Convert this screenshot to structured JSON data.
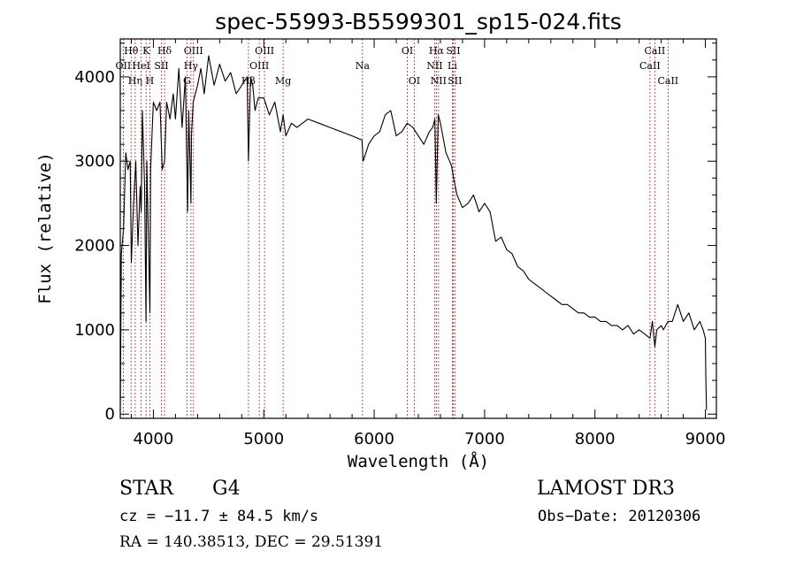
{
  "chart_data": {
    "type": "line",
    "title": "spec-55993-B5599301_sp15-024.fits",
    "xlabel": "Wavelength (Å)",
    "ylabel": "Flux (relative)",
    "xlim": [
      3700,
      9100
    ],
    "ylim": [
      -50,
      4450
    ],
    "x_ticks": [
      4000,
      5000,
      6000,
      7000,
      8000,
      9000
    ],
    "y_ticks": [
      0,
      1000,
      2000,
      3000,
      4000
    ],
    "grid": false,
    "series": [
      {
        "name": "spectrum",
        "x": [
          3700,
          3710,
          3730,
          3750,
          3770,
          3790,
          3800,
          3820,
          3840,
          3860,
          3880,
          3890,
          3900,
          3920,
          3933,
          3940,
          3950,
          3968,
          3975,
          3990,
          4000,
          4030,
          4060,
          4080,
          4101,
          4120,
          4150,
          4180,
          4200,
          4230,
          4260,
          4290,
          4310,
          4320,
          4340,
          4345,
          4360,
          4380,
          4400,
          4430,
          4460,
          4500,
          4550,
          4600,
          4650,
          4700,
          4750,
          4800,
          4850,
          4861,
          4880,
          4900,
          4920,
          4950,
          5000,
          5050,
          5100,
          5150,
          5175,
          5200,
          5250,
          5300,
          5400,
          5500,
          5600,
          5700,
          5800,
          5890,
          5900,
          5950,
          6000,
          6050,
          6100,
          6150,
          6200,
          6250,
          6300,
          6350,
          6400,
          6450,
          6500,
          6530,
          6550,
          6563,
          6580,
          6600,
          6650,
          6700,
          6720,
          6750,
          6800,
          6850,
          6900,
          6950,
          7000,
          7050,
          7100,
          7150,
          7200,
          7250,
          7300,
          7350,
          7400,
          7450,
          7500,
          7550,
          7600,
          7650,
          7700,
          7750,
          7800,
          7850,
          7900,
          7950,
          8000,
          8050,
          8100,
          8150,
          8200,
          8250,
          8300,
          8350,
          8400,
          8450,
          8498,
          8520,
          8542,
          8560,
          8600,
          8620,
          8662,
          8700,
          8750,
          8800,
          8850,
          8900,
          8950,
          8980,
          9000,
          9005,
          9010
        ],
        "values": [
          50,
          1900,
          2200,
          3100,
          2900,
          3000,
          1800,
          2500,
          3000,
          2000,
          2700,
          2400,
          3600,
          2700,
          1100,
          3000,
          2400,
          1200,
          2900,
          3400,
          3700,
          3600,
          3700,
          2900,
          3000,
          3700,
          3500,
          3800,
          3500,
          4100,
          3400,
          4000,
          2400,
          3600,
          2500,
          3300,
          3700,
          3800,
          3900,
          4100,
          3800,
          4250,
          3900,
          4150,
          3950,
          4050,
          3800,
          3900,
          4000,
          3000,
          4000,
          3900,
          3600,
          3750,
          3750,
          3550,
          3700,
          3350,
          3550,
          3300,
          3450,
          3400,
          3500,
          3450,
          3400,
          3350,
          3300,
          3250,
          3000,
          3200,
          3300,
          3350,
          3550,
          3600,
          3300,
          3350,
          3450,
          3400,
          3300,
          3200,
          3350,
          3400,
          3500,
          2500,
          3550,
          3450,
          3100,
          2950,
          2800,
          2600,
          2450,
          2500,
          2600,
          2400,
          2500,
          2400,
          2050,
          2100,
          1950,
          1900,
          1750,
          1700,
          1600,
          1550,
          1500,
          1450,
          1400,
          1350,
          1300,
          1300,
          1250,
          1200,
          1200,
          1150,
          1150,
          1100,
          1100,
          1050,
          1050,
          1000,
          1050,
          950,
          1000,
          950,
          900,
          1100,
          800,
          1000,
          1050,
          1000,
          1100,
          1100,
          1300,
          1100,
          1200,
          1000,
          1100,
          1000,
          900,
          400,
          50
        ]
      }
    ],
    "line_markers": [
      {
        "label": "Hθ",
        "wavelength": 3798,
        "row": 1
      },
      {
        "label": "OII",
        "wavelength": 3727,
        "row": 2
      },
      {
        "label": "Hη",
        "wavelength": 3835,
        "row": 3
      },
      {
        "label": "K",
        "wavelength": 3934,
        "row": 1
      },
      {
        "label": "HeI",
        "wavelength": 3889,
        "row": 2
      },
      {
        "label": "H",
        "wavelength": 3968,
        "row": 3
      },
      {
        "label": "Hδ",
        "wavelength": 4101,
        "row": 1
      },
      {
        "label": "SII",
        "wavelength": 4072,
        "row": 2
      },
      {
        "label": "OIII",
        "wavelength": 4363,
        "row": 1
      },
      {
        "label": "Hγ",
        "wavelength": 4340,
        "row": 2
      },
      {
        "label": "G",
        "wavelength": 4304,
        "row": 3
      },
      {
        "label": "OIII",
        "wavelength": 5007,
        "row": 1
      },
      {
        "label": "OIII",
        "wavelength": 4959,
        "row": 2
      },
      {
        "label": "Hβ",
        "wavelength": 4861,
        "row": 3
      },
      {
        "label": "Mg",
        "wavelength": 5175,
        "row": 3
      },
      {
        "label": "Na",
        "wavelength": 5894,
        "row": 2
      },
      {
        "label": "OI",
        "wavelength": 6300,
        "row": 1
      },
      {
        "label": "OI",
        "wavelength": 6363,
        "row": 3
      },
      {
        "label": "Hα",
        "wavelength": 6563,
        "row": 1
      },
      {
        "label": "NII",
        "wavelength": 6548,
        "row": 2
      },
      {
        "label": "NII",
        "wavelength": 6583,
        "row": 3
      },
      {
        "label": "SII",
        "wavelength": 6716,
        "row": 1
      },
      {
        "label": "Li",
        "wavelength": 6708,
        "row": 2
      },
      {
        "label": "SII",
        "wavelength": 6731,
        "row": 3
      },
      {
        "label": "CaII",
        "wavelength": 8542,
        "row": 1
      },
      {
        "label": "CaII",
        "wavelength": 8498,
        "row": 2
      },
      {
        "label": "CaII",
        "wavelength": 8662,
        "row": 3
      }
    ]
  },
  "info": {
    "object_class": "STAR",
    "subclass": "G4",
    "survey": "LAMOST DR3",
    "cz": "cz = −11.7 ± 84.5 km/s",
    "obs_date": "Obs−Date: 20120306",
    "coords": "RA = 140.38513, DEC =  29.51391"
  }
}
